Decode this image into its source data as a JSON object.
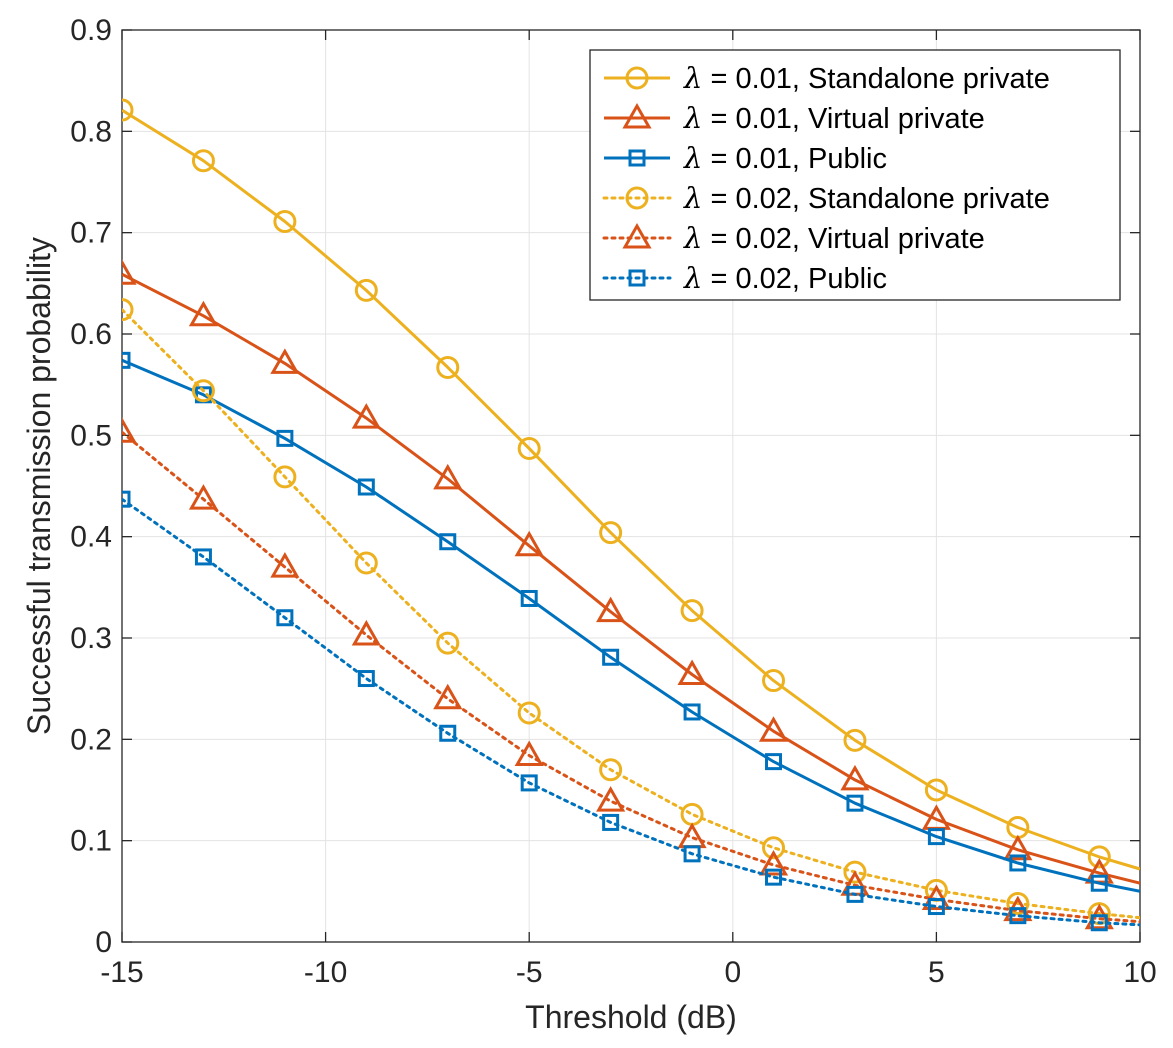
{
  "chart_data": {
    "type": "line",
    "title": "",
    "xlabel": "Threshold (dB)",
    "ylabel": "Successful transmission probability",
    "xlim": [
      -15,
      10
    ],
    "ylim": [
      0,
      0.9
    ],
    "xticks": [
      -15,
      -10,
      -5,
      0,
      5,
      10
    ],
    "xtick_labels": [
      "-15",
      "-10",
      "-5",
      "0",
      "5",
      "10"
    ],
    "yticks": [
      0,
      0.1,
      0.2,
      0.3,
      0.4,
      0.5,
      0.6,
      0.7,
      0.8,
      0.9
    ],
    "ytick_labels": [
      "0",
      "0.1",
      "0.2",
      "0.3",
      "0.4",
      "0.5",
      "0.6",
      "0.7",
      "0.8",
      "0.9"
    ],
    "grid": true,
    "legend_position": "top-right",
    "x": [
      -15,
      -13,
      -11,
      -9,
      -7,
      -5,
      -3,
      -1,
      1,
      3,
      5,
      7,
      9,
      10
    ],
    "series": [
      {
        "name": "λ = 0.01, Standalone private",
        "lambda": "λ",
        "rest": " = 0.01, Standalone private",
        "color": "#EDB120",
        "linestyle": "solid",
        "marker": "circle",
        "values": [
          0.821,
          0.771,
          0.711,
          0.643,
          0.567,
          0.487,
          0.404,
          0.327,
          0.258,
          0.199,
          0.15,
          0.113,
          0.084,
          0.072
        ]
      },
      {
        "name": "λ = 0.01, Virtual private",
        "lambda": "λ",
        "rest": " = 0.01, Virtual private",
        "color": "#D95319",
        "linestyle": "solid",
        "marker": "triangle",
        "values": [
          0.659,
          0.618,
          0.571,
          0.517,
          0.457,
          0.391,
          0.326,
          0.264,
          0.208,
          0.16,
          0.121,
          0.091,
          0.068,
          0.058
        ]
      },
      {
        "name": "λ = 0.01, Public",
        "lambda": "λ",
        "rest": " = 0.01, Public",
        "color": "#0072BD",
        "linestyle": "solid",
        "marker": "square",
        "values": [
          0.574,
          0.54,
          0.497,
          0.449,
          0.395,
          0.339,
          0.281,
          0.227,
          0.178,
          0.137,
          0.104,
          0.078,
          0.058,
          0.05
        ]
      },
      {
        "name": "λ = 0.02, Standalone private",
        "lambda": "λ",
        "rest": " = 0.02, Standalone private",
        "color": "#EDB120",
        "linestyle": "dotted",
        "marker": "circle",
        "values": [
          0.624,
          0.544,
          0.459,
          0.374,
          0.295,
          0.226,
          0.17,
          0.126,
          0.093,
          0.069,
          0.051,
          0.038,
          0.028,
          0.024
        ]
      },
      {
        "name": "λ = 0.02, Virtual private",
        "lambda": "λ",
        "rest": " = 0.02, Virtual private",
        "color": "#D95319",
        "linestyle": "dotted",
        "marker": "triangle",
        "values": [
          0.503,
          0.437,
          0.37,
          0.303,
          0.24,
          0.184,
          0.139,
          0.103,
          0.076,
          0.056,
          0.042,
          0.031,
          0.023,
          0.02
        ]
      },
      {
        "name": "λ = 0.02, Public",
        "lambda": "λ",
        "rest": " = 0.02, Public",
        "color": "#0072BD",
        "linestyle": "dotted",
        "marker": "square",
        "values": [
          0.437,
          0.38,
          0.32,
          0.26,
          0.206,
          0.157,
          0.118,
          0.087,
          0.064,
          0.047,
          0.035,
          0.026,
          0.019,
          0.017
        ]
      }
    ]
  }
}
